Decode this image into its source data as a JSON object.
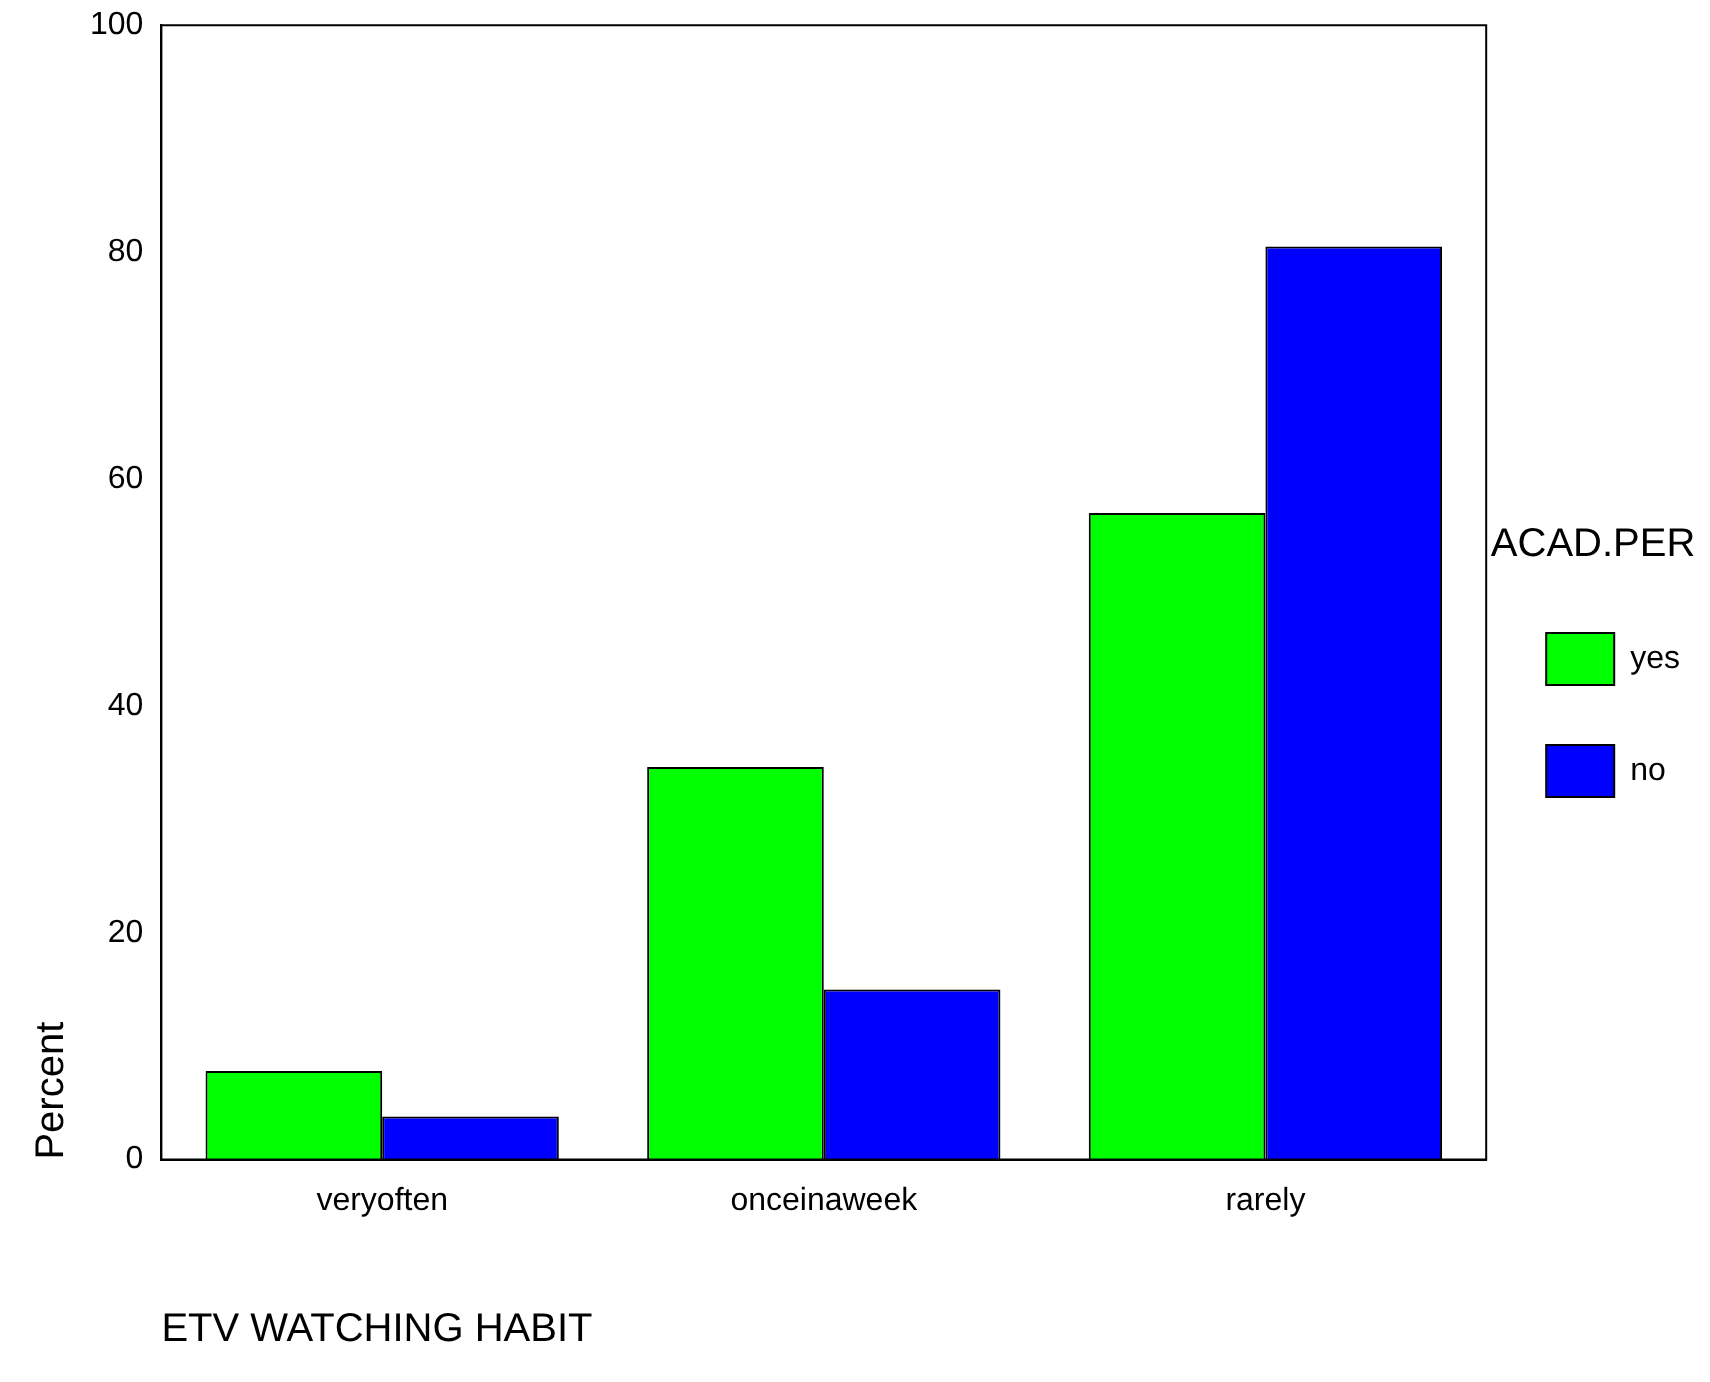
{
  "chart_data": {
    "type": "bar",
    "xlabel": "ETV WATCHING HABIT",
    "ylabel": "Percent",
    "legend_title": "ACAD.PER",
    "categories": [
      "veryoften",
      "onceinaweek",
      "rarely"
    ],
    "series": [
      {
        "name": "yes",
        "color": "#00ff00",
        "values": [
          7.8,
          34.6,
          57.0
        ]
      },
      {
        "name": "no",
        "color": "#0000ff",
        "values": [
          3.8,
          15.0,
          80.5
        ]
      }
    ],
    "ylim": [
      0,
      100
    ],
    "yticks": [
      0,
      20,
      40,
      60,
      80,
      100
    ],
    "grid": false,
    "legend": "right"
  }
}
